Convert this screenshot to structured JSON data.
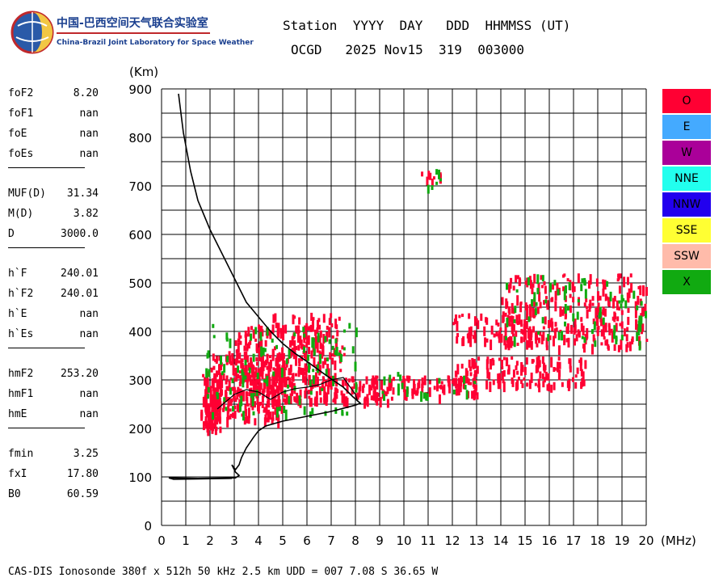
{
  "logo": {
    "cn": "中国-巴西空间天气联合实验室",
    "en": "China-Brazil Joint Laboratory for Space Weather",
    "icon": "globe-logo-icon"
  },
  "header": {
    "labels": "Station  YYYY  DAY   DDD  HHMMSS (UT)",
    "values": "OCGD   2025 Nov15  319  003000"
  },
  "parameters": [
    {
      "label": "foF2",
      "value": "8.20"
    },
    {
      "label": "foF1",
      "value": "nan"
    },
    {
      "label": "foE",
      "value": "nan"
    },
    {
      "label": "foEs",
      "value": "nan"
    },
    {
      "label": "MUF(D)",
      "value": "31.34"
    },
    {
      "label": "M(D)",
      "value": "3.82"
    },
    {
      "label": "D",
      "value": "3000.0"
    },
    {
      "label": "h`F",
      "value": "240.01"
    },
    {
      "label": "h`F2",
      "value": "240.01"
    },
    {
      "label": "h`E",
      "value": "nan"
    },
    {
      "label": "h`Es",
      "value": "nan"
    },
    {
      "label": "hmF2",
      "value": "253.20"
    },
    {
      "label": "hmF1",
      "value": "nan"
    },
    {
      "label": "hmE",
      "value": "nan"
    },
    {
      "label": "fmin",
      "value": "3.25"
    },
    {
      "label": "fxI",
      "value": "17.80"
    },
    {
      "label": "B0",
      "value": "60.59"
    }
  ],
  "legend": [
    {
      "label": "O",
      "color": "#ff0033"
    },
    {
      "label": "E",
      "color": "#44aaff"
    },
    {
      "label": "W",
      "color": "#aa0099"
    },
    {
      "label": "NNE",
      "color": "#22ffee"
    },
    {
      "label": "NNW",
      "color": "#2200ee"
    },
    {
      "label": "SSE",
      "color": "#ffff33"
    },
    {
      "label": "SSW",
      "color": "#ffbbaa"
    },
    {
      "label": "X",
      "color": "#11aa11"
    }
  ],
  "footer": "CAS-DIS Ionosonde 380f x 512h 50 kHz 2.5 km UDD = 007 7.08 S 36.65 W",
  "chart_data": {
    "type": "scatter",
    "xlabel": "(MHz)",
    "ylabel": "(Km)",
    "xlim": [
      0,
      20
    ],
    "ylim": [
      0,
      900
    ],
    "x_ticks": [
      0,
      1,
      2,
      3,
      4,
      5,
      6,
      7,
      8,
      9,
      10,
      11,
      12,
      13,
      14,
      15,
      16,
      17,
      18,
      19,
      20
    ],
    "y_ticks": [
      0,
      100,
      200,
      300,
      400,
      500,
      600,
      700,
      800,
      900
    ],
    "grid": true,
    "series": [
      {
        "name": "O",
        "color": "#ff0033",
        "clouds": [
          {
            "x0": 1.6,
            "x1": 2.4,
            "y0": 200,
            "y1": 320,
            "n": 90
          },
          {
            "x0": 2.0,
            "x1": 5.0,
            "y0": 220,
            "y1": 360,
            "n": 260
          },
          {
            "x0": 3.0,
            "x1": 6.5,
            "y0": 260,
            "y1": 420,
            "n": 200
          },
          {
            "x0": 4.5,
            "x1": 7.5,
            "y0": 260,
            "y1": 440,
            "n": 150
          },
          {
            "x0": 6.5,
            "x1": 9.5,
            "y0": 260,
            "y1": 310,
            "n": 80
          },
          {
            "x0": 9.0,
            "x1": 13.0,
            "y0": 270,
            "y1": 310,
            "n": 80
          },
          {
            "x0": 12.0,
            "x1": 17.5,
            "y0": 290,
            "y1": 350,
            "n": 130
          },
          {
            "x0": 12.0,
            "x1": 16.0,
            "y0": 380,
            "y1": 440,
            "n": 80
          },
          {
            "x0": 14.0,
            "x1": 20.0,
            "y0": 370,
            "y1": 520,
            "n": 260
          },
          {
            "x0": 10.7,
            "x1": 11.5,
            "y0": 710,
            "y1": 740,
            "n": 8
          }
        ]
      },
      {
        "name": "X",
        "color": "#11aa11",
        "clouds": [
          {
            "x0": 1.8,
            "x1": 8.0,
            "y0": 230,
            "y1": 420,
            "n": 110
          },
          {
            "x0": 9.0,
            "x1": 13.0,
            "y0": 270,
            "y1": 320,
            "n": 20
          },
          {
            "x0": 14.0,
            "x1": 20.0,
            "y0": 380,
            "y1": 520,
            "n": 70
          },
          {
            "x0": 10.6,
            "x1": 11.6,
            "y0": 700,
            "y1": 750,
            "n": 6
          }
        ]
      }
    ],
    "profile": [
      [
        0.7,
        890
      ],
      [
        0.9,
        810
      ],
      [
        1.2,
        730
      ],
      [
        1.5,
        670
      ],
      [
        2.0,
        610
      ],
      [
        2.5,
        560
      ],
      [
        3.0,
        510
      ],
      [
        3.5,
        460
      ],
      [
        4.0,
        430
      ],
      [
        4.5,
        400
      ],
      [
        5.0,
        375
      ],
      [
        5.5,
        355
      ],
      [
        6.0,
        338
      ],
      [
        6.5,
        320
      ],
      [
        7.0,
        302
      ],
      [
        7.5,
        285
      ],
      [
        7.9,
        265
      ],
      [
        8.2,
        252
      ],
      [
        8.0,
        248
      ],
      [
        7.0,
        235
      ],
      [
        6.0,
        225
      ],
      [
        5.0,
        215
      ],
      [
        4.3,
        205
      ],
      [
        4.0,
        195
      ],
      [
        3.8,
        182
      ],
      [
        3.5,
        160
      ],
      [
        3.3,
        140
      ],
      [
        3.2,
        125
      ],
      [
        3.05,
        115
      ],
      [
        2.9,
        125
      ],
      [
        3.05,
        110
      ],
      [
        3.2,
        103
      ],
      [
        3.05,
        98
      ],
      [
        1.5,
        97
      ],
      [
        0.3,
        98
      ],
      [
        0.5,
        95
      ],
      [
        2.9,
        97
      ]
    ],
    "trace_inner": [
      [
        2.3,
        240
      ],
      [
        3.0,
        270
      ],
      [
        3.5,
        280
      ],
      [
        4.0,
        275
      ],
      [
        4.5,
        260
      ],
      [
        5.0,
        275
      ],
      [
        5.5,
        282
      ],
      [
        6.0,
        285
      ],
      [
        6.5,
        290
      ],
      [
        7.0,
        300
      ],
      [
        7.5,
        305
      ],
      [
        8.0,
        270
      ],
      [
        8.1,
        255
      ]
    ]
  }
}
